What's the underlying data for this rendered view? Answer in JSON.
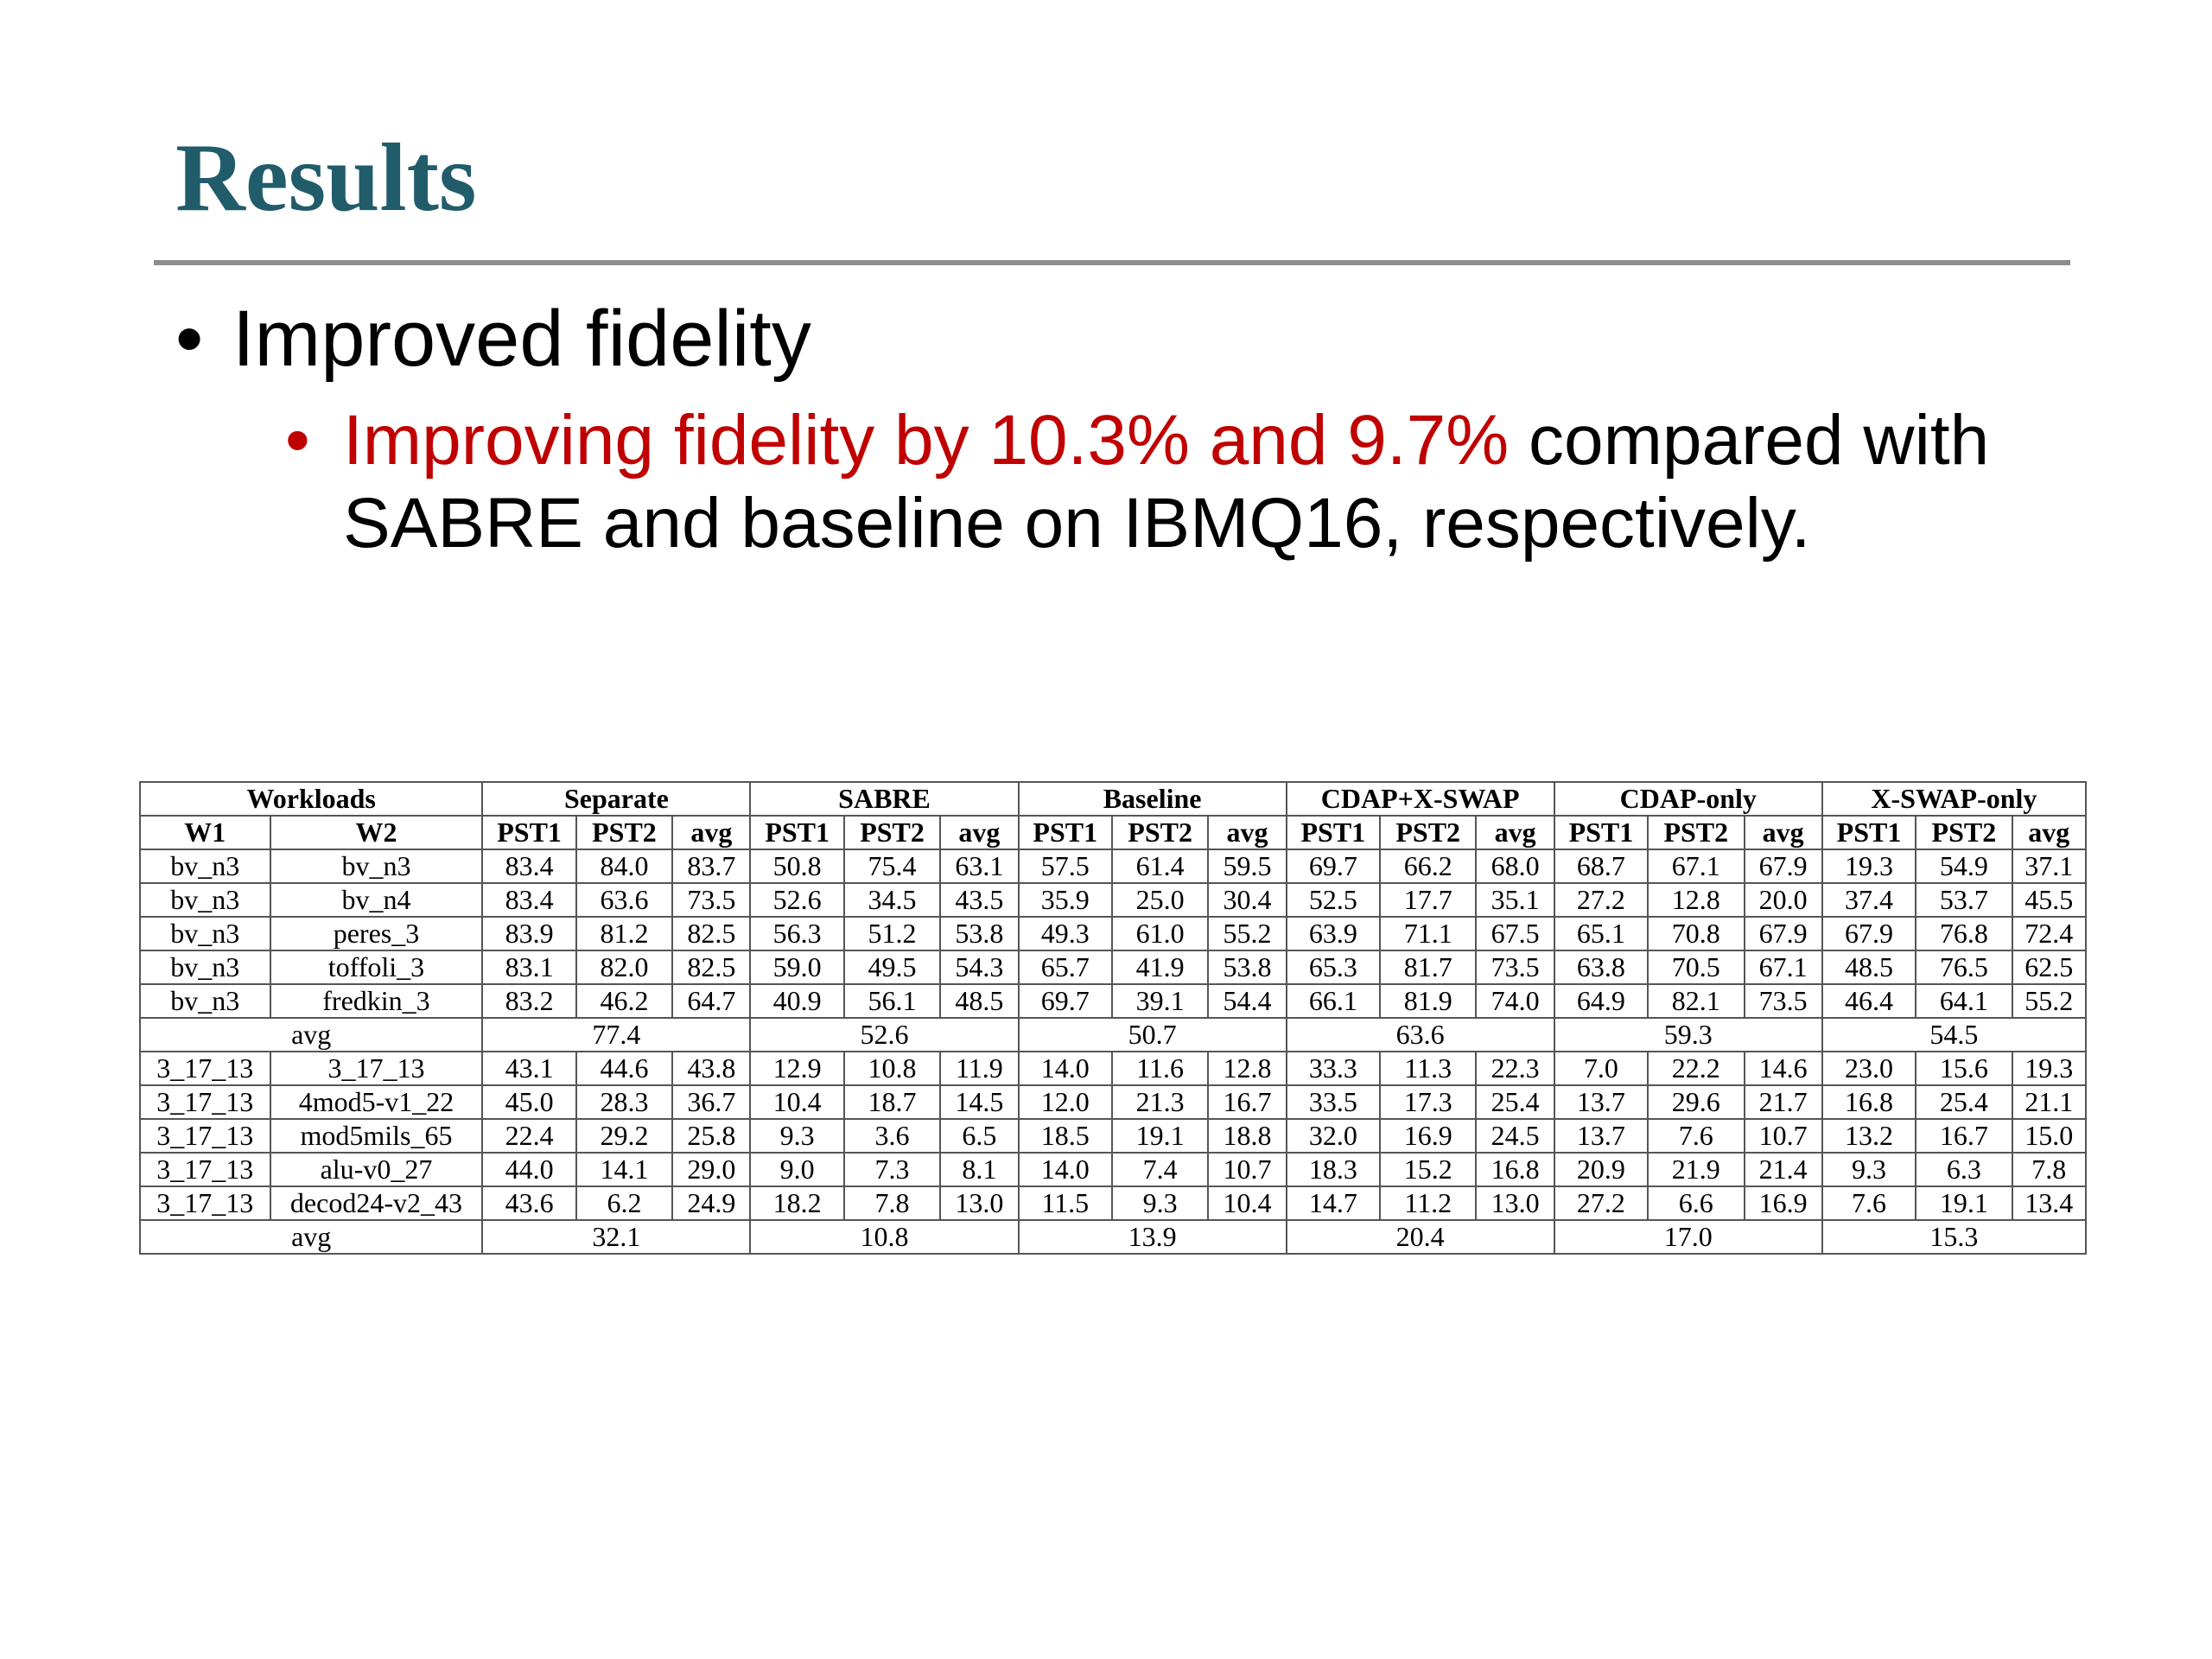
{
  "slide": {
    "title": "Results",
    "bullet_l1": "Improved fidelity",
    "bullet_l2_red": "Improving fidelity by 10.3% and 9.7%",
    "bullet_l2_black": " compared with SABRE and baseline on IBMQ16, respectively."
  },
  "colors": {
    "title": "#215c6b",
    "highlight": "#c00000",
    "rule": "#8c8c8c"
  },
  "table": {
    "groups": [
      "Workloads",
      "Separate",
      "SABRE",
      "Baseline",
      "CDAP+X-SWAP",
      "CDAP-only",
      "X-SWAP-only"
    ],
    "subheaders": [
      "W1",
      "W2",
      "PST1",
      "PST2",
      "avg",
      "PST1",
      "PST2",
      "avg",
      "PST1",
      "PST2",
      "avg",
      "PST1",
      "PST2",
      "avg",
      "PST1",
      "PST2",
      "avg",
      "PST1",
      "PST2",
      "avg"
    ],
    "section1": [
      [
        "bv_n3",
        "bv_n3",
        "83.4",
        "84.0",
        "83.7",
        "50.8",
        "75.4",
        "63.1",
        "57.5",
        "61.4",
        "59.5",
        "69.7",
        "66.2",
        "68.0",
        "68.7",
        "67.1",
        "67.9",
        "19.3",
        "54.9",
        "37.1"
      ],
      [
        "bv_n3",
        "bv_n4",
        "83.4",
        "63.6",
        "73.5",
        "52.6",
        "34.5",
        "43.5",
        "35.9",
        "25.0",
        "30.4",
        "52.5",
        "17.7",
        "35.1",
        "27.2",
        "12.8",
        "20.0",
        "37.4",
        "53.7",
        "45.5"
      ],
      [
        "bv_n3",
        "peres_3",
        "83.9",
        "81.2",
        "82.5",
        "56.3",
        "51.2",
        "53.8",
        "49.3",
        "61.0",
        "55.2",
        "63.9",
        "71.1",
        "67.5",
        "65.1",
        "70.8",
        "67.9",
        "67.9",
        "76.8",
        "72.4"
      ],
      [
        "bv_n3",
        "toffoli_3",
        "83.1",
        "82.0",
        "82.5",
        "59.0",
        "49.5",
        "54.3",
        "65.7",
        "41.9",
        "53.8",
        "65.3",
        "81.7",
        "73.5",
        "63.8",
        "70.5",
        "67.1",
        "48.5",
        "76.5",
        "62.5"
      ],
      [
        "bv_n3",
        "fredkin_3",
        "83.2",
        "46.2",
        "64.7",
        "40.9",
        "56.1",
        "48.5",
        "69.7",
        "39.1",
        "54.4",
        "66.1",
        "81.9",
        "74.0",
        "64.9",
        "82.1",
        "73.5",
        "46.4",
        "64.1",
        "55.2"
      ]
    ],
    "avg1": {
      "label": "avg",
      "values": [
        "77.4",
        "52.6",
        "50.7",
        "63.6",
        "59.3",
        "54.5"
      ]
    },
    "section2": [
      [
        "3_17_13",
        "3_17_13",
        "43.1",
        "44.6",
        "43.8",
        "12.9",
        "10.8",
        "11.9",
        "14.0",
        "11.6",
        "12.8",
        "33.3",
        "11.3",
        "22.3",
        "7.0",
        "22.2",
        "14.6",
        "23.0",
        "15.6",
        "19.3"
      ],
      [
        "3_17_13",
        "4mod5-v1_22",
        "45.0",
        "28.3",
        "36.7",
        "10.4",
        "18.7",
        "14.5",
        "12.0",
        "21.3",
        "16.7",
        "33.5",
        "17.3",
        "25.4",
        "13.7",
        "29.6",
        "21.7",
        "16.8",
        "25.4",
        "21.1"
      ],
      [
        "3_17_13",
        "mod5mils_65",
        "22.4",
        "29.2",
        "25.8",
        "9.3",
        "3.6",
        "6.5",
        "18.5",
        "19.1",
        "18.8",
        "32.0",
        "16.9",
        "24.5",
        "13.7",
        "7.6",
        "10.7",
        "13.2",
        "16.7",
        "15.0"
      ],
      [
        "3_17_13",
        "alu-v0_27",
        "44.0",
        "14.1",
        "29.0",
        "9.0",
        "7.3",
        "8.1",
        "14.0",
        "7.4",
        "10.7",
        "18.3",
        "15.2",
        "16.8",
        "20.9",
        "21.9",
        "21.4",
        "9.3",
        "6.3",
        "7.8"
      ],
      [
        "3_17_13",
        "decod24-v2_43",
        "43.6",
        "6.2",
        "24.9",
        "18.2",
        "7.8",
        "13.0",
        "11.5",
        "9.3",
        "10.4",
        "14.7",
        "11.2",
        "13.0",
        "27.2",
        "6.6",
        "16.9",
        "7.6",
        "19.1",
        "13.4"
      ]
    ],
    "avg2": {
      "label": "avg",
      "values": [
        "32.1",
        "10.8",
        "13.9",
        "20.4",
        "17.0",
        "15.3"
      ]
    }
  }
}
